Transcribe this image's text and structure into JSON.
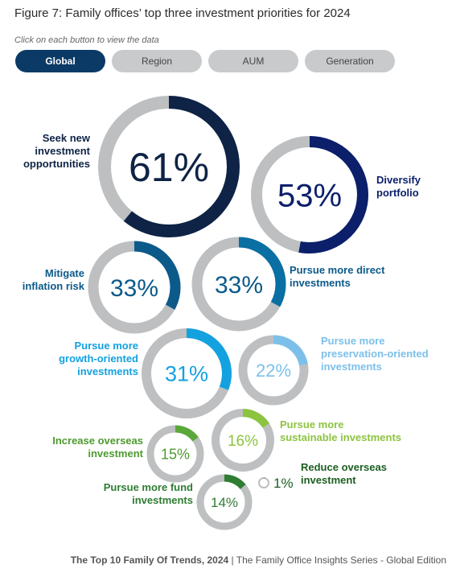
{
  "title": "Figure 7: Family offices’ top three investment priorities for 2024",
  "instruction": "Click on each button to view the data",
  "tabs": [
    {
      "label": "Global",
      "active": true
    },
    {
      "label": "Region",
      "active": false
    },
    {
      "label": "AUM",
      "active": false
    },
    {
      "label": "Generation",
      "active": false
    }
  ],
  "chart_data": {
    "type": "donut",
    "series": [
      {
        "name": "Seek new investment opportunities",
        "label_lines": [
          "Seek new",
          "investment",
          "opportunities"
        ],
        "value": 61,
        "color": "#0e2345",
        "value_color": "#0e2345"
      },
      {
        "name": "Diversify portfolio",
        "label_lines": [
          "Diversify",
          "portfolio"
        ],
        "value": 53,
        "color": "#0b1f6b",
        "value_color": "#0b1f6b"
      },
      {
        "name": "Mitigate inflation risk",
        "label_lines": [
          "Mitigate",
          "inflation risk"
        ],
        "value": 33,
        "color": "#0b5a8a",
        "value_color": "#0b5a8a"
      },
      {
        "name": "Pursue more direct investments",
        "label_lines": [
          "Pursue more direct",
          "investments"
        ],
        "value": 33,
        "color": "#0a6fa3",
        "value_color": "#0b5a8a"
      },
      {
        "name": "Pursue more growth-oriented investments",
        "label_lines": [
          "Pursue more",
          "growth-oriented",
          "investments"
        ],
        "value": 31,
        "color": "#14a1e0",
        "value_color": "#14a1e0"
      },
      {
        "name": "Pursue more preservation-oriented investments",
        "label_lines": [
          "Pursue more",
          "preservation-oriented",
          "investments"
        ],
        "value": 22,
        "color": "#7cc0ea",
        "value_color": "#7cc0ea"
      },
      {
        "name": "Pursue more sustainable investments",
        "label_lines": [
          "Pursue more",
          "sustainable investments"
        ],
        "value": 16,
        "color": "#8cc43f",
        "value_color": "#8cc43f"
      },
      {
        "name": "Increase overseas investment",
        "label_lines": [
          "Increase overseas",
          "investment"
        ],
        "value": 15,
        "color": "#5aa83a",
        "value_color": "#4e9a2e"
      },
      {
        "name": "Pursue more fund investments",
        "label_lines": [
          "Pursue more fund",
          "investments"
        ],
        "value": 14,
        "color": "#2e7d32",
        "value_color": "#2e7d32"
      },
      {
        "name": "Reduce overseas investment",
        "label_lines": [
          "Reduce overseas",
          "investment"
        ],
        "value": 1,
        "color": "#1b5e20",
        "value_color": "#1b5e20"
      }
    ],
    "track_color": "#bdbfc1",
    "unit": "%"
  },
  "footer": {
    "bold": "The Top 10 Family Of Trends, 2024",
    "rest": " | The Family Office Insights Series - Global Edition"
  }
}
